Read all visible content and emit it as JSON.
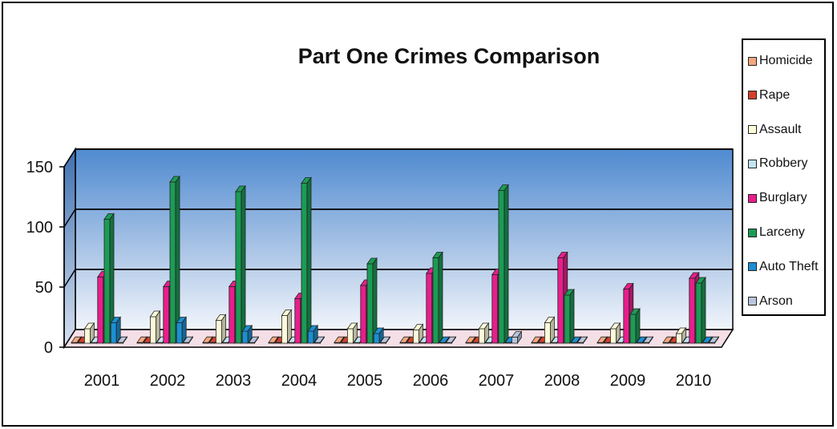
{
  "chart_data": {
    "type": "bar",
    "title": "Part One Crimes Comparison",
    "xlabel": "",
    "ylabel": "",
    "ylim": [
      0,
      150
    ],
    "yticks": [
      0,
      50,
      100,
      150
    ],
    "categories": [
      "2001",
      "2002",
      "2003",
      "2004",
      "2005",
      "2006",
      "2007",
      "2008",
      "2009",
      "2010"
    ],
    "legend_position": "right",
    "series": [
      {
        "name": "Homicide",
        "color": "#f4a77f",
        "values": [
          0,
          0,
          0,
          0,
          0,
          0,
          0,
          0,
          0,
          0
        ]
      },
      {
        "name": "Rape",
        "color": "#d2402a",
        "values": [
          0,
          0,
          0,
          0,
          0,
          0,
          0,
          0,
          0,
          0
        ]
      },
      {
        "name": "Assault",
        "color": "#fdfbd9",
        "values": [
          12,
          22,
          19,
          23,
          12,
          11,
          12,
          17,
          12,
          8
        ]
      },
      {
        "name": "Robbery",
        "color": "#c4e4f3",
        "values": [
          0,
          0,
          0,
          0,
          0,
          0,
          0,
          0,
          0,
          0
        ]
      },
      {
        "name": "Burglary",
        "color": "#e81e8c",
        "values": [
          55,
          47,
          47,
          37,
          48,
          58,
          57,
          71,
          45,
          54
        ]
      },
      {
        "name": "Larceny",
        "color": "#1b9c55",
        "values": [
          103,
          134,
          126,
          133,
          66,
          71,
          127,
          40,
          24,
          50
        ]
      },
      {
        "name": "Auto Theft",
        "color": "#1c8fd2",
        "values": [
          17,
          17,
          10,
          10,
          8,
          0,
          0,
          0,
          0,
          0
        ]
      },
      {
        "name": "Arson",
        "color": "#b8c6dc",
        "values": [
          0,
          0,
          0,
          0,
          0,
          0,
          5,
          0,
          0,
          0
        ]
      }
    ]
  }
}
